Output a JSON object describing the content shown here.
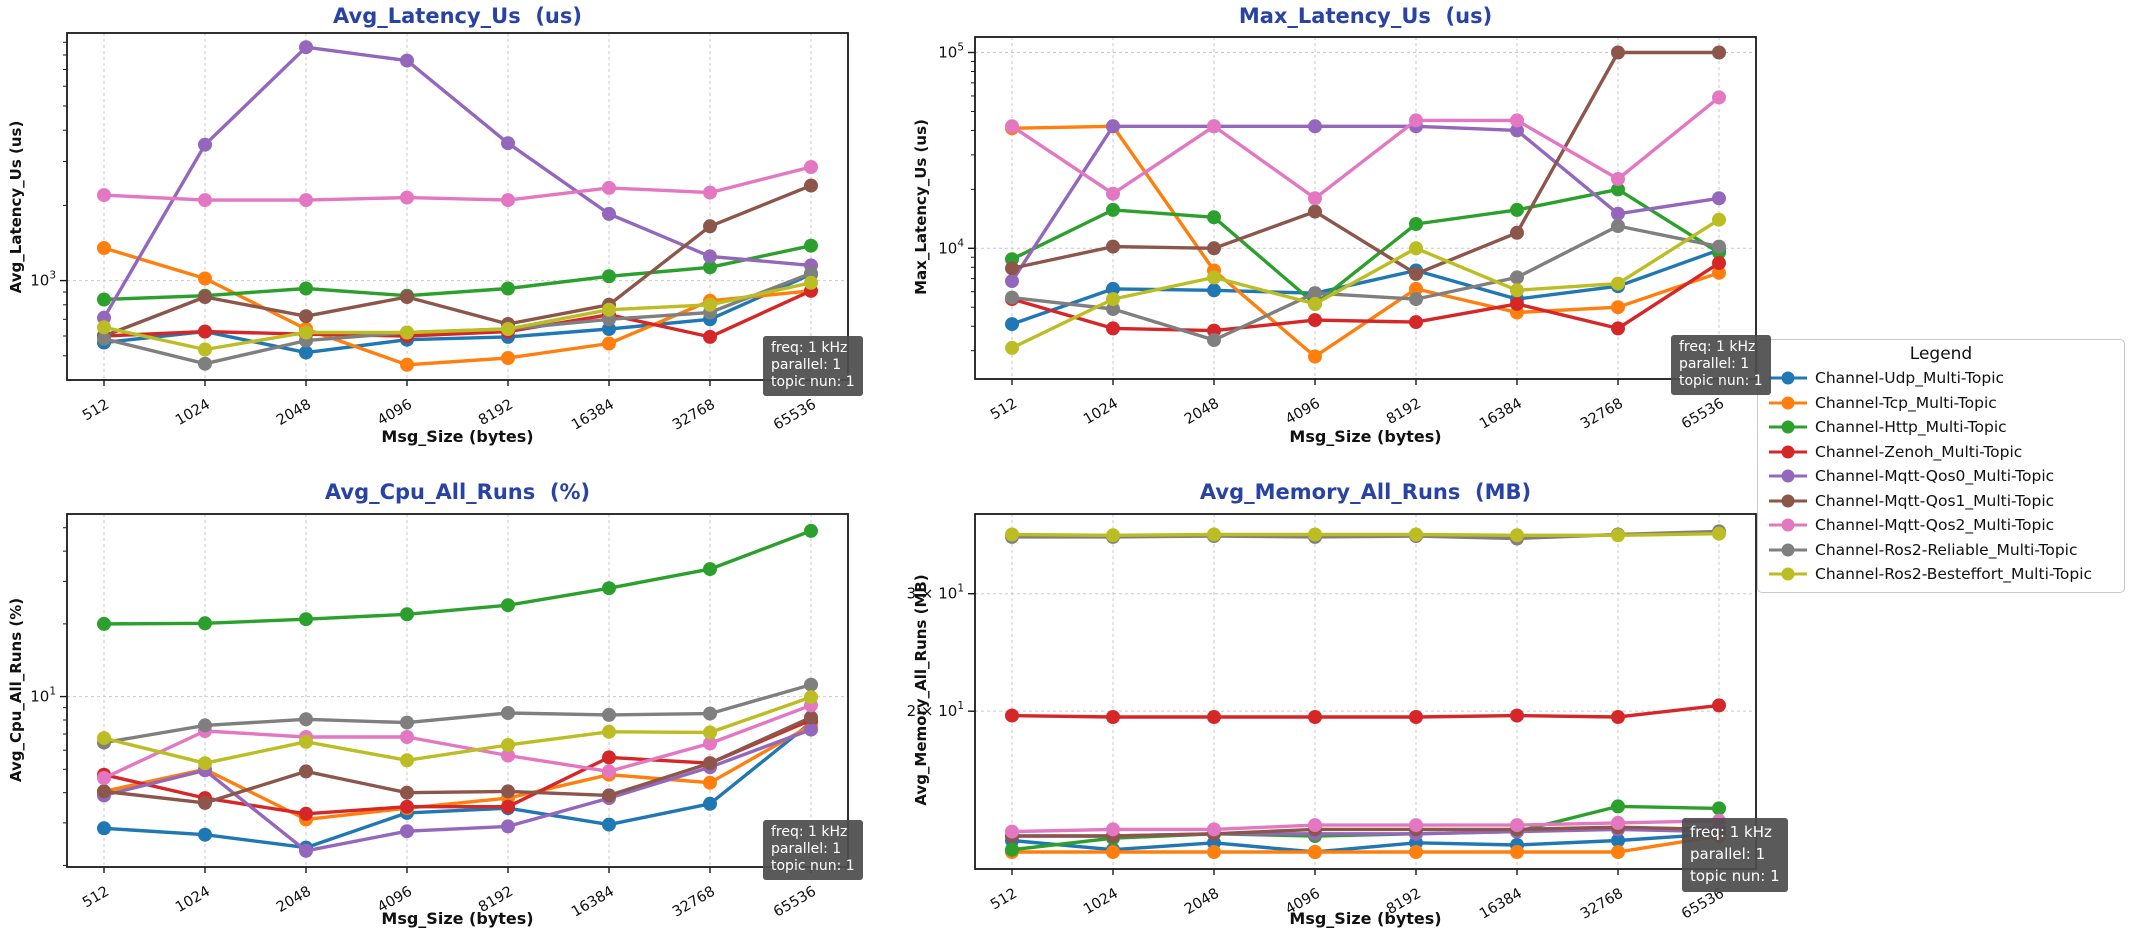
{
  "figure": {
    "background": "#ffffff",
    "title_color": "#2843a4",
    "grid_color": "#c9c9c9",
    "spine_color": "#1a1a1a",
    "annotation": {
      "lines": [
        "freq: 1 kHz",
        "parallel: 1",
        "topic nun: 1"
      ]
    },
    "legend": {
      "title": "Legend"
    }
  },
  "chart_data": [
    {
      "type": "line",
      "title": "Avg_Latency_Us  (us)",
      "ylabel": "Avg_Latency_Us (us)",
      "xlabel": "Msg_Size (bytes)",
      "xscale": "log-category",
      "yscale": "log",
      "grid": true,
      "legend_position": "right-outside",
      "x_categories": [
        "512",
        "1024",
        "2048",
        "4096",
        "8192",
        "16384",
        "32768",
        "65536"
      ],
      "ylim": [
        400,
        9800
      ],
      "yticks": [
        {
          "value": 1000,
          "label": "10^3"
        }
      ],
      "series": [
        {
          "name": "Channel-Udp_Multi-Topic",
          "color": "#1f77b4",
          "values": [
            565,
            625,
            515,
            580,
            595,
            640,
            700,
            1060
          ]
        },
        {
          "name": "Channel-Tcp_Multi-Topic",
          "color": "#ff7f0e",
          "values": [
            1350,
            1020,
            640,
            460,
            490,
            560,
            830,
            910
          ]
        },
        {
          "name": "Channel-Http_Multi-Topic",
          "color": "#2ca02c",
          "values": [
            840,
            870,
            930,
            870,
            930,
            1040,
            1130,
            1380
          ]
        },
        {
          "name": "Channel-Zenoh_Multi-Topic",
          "color": "#d62728",
          "values": [
            600,
            625,
            610,
            600,
            625,
            730,
            595,
            910
          ]
        },
        {
          "name": "Channel-Mqtt-Qos0_Multi-Topic",
          "color": "#9467bd",
          "values": [
            710,
            3500,
            8600,
            7600,
            3550,
            1850,
            1250,
            1150
          ]
        },
        {
          "name": "Channel-Mqtt-Qos1_Multi-Topic",
          "color": "#8c564b",
          "values": [
            600,
            860,
            720,
            860,
            670,
            800,
            1650,
            2400
          ]
        },
        {
          "name": "Channel-Mqtt-Qos2_Multi-Topic",
          "color": "#e377c2",
          "values": [
            2200,
            2100,
            2100,
            2150,
            2100,
            2350,
            2250,
            2850
          ]
        },
        {
          "name": "Channel-Ros2-Reliable_Multi-Topic",
          "color": "#7f7f7f",
          "values": [
            585,
            465,
            575,
            620,
            640,
            700,
            745,
            1070
          ]
        },
        {
          "name": "Channel-Ros2-Besteffort_Multi-Topic",
          "color": "#bcbd22",
          "values": [
            650,
            530,
            620,
            620,
            640,
            765,
            800,
            980
          ]
        }
      ]
    },
    {
      "type": "line",
      "title": "Max_Latency_Us  (us)",
      "ylabel": "Max_Latency_Us (us)",
      "xlabel": "Msg_Size (bytes)",
      "xscale": "log-category",
      "yscale": "log",
      "grid": true,
      "x_categories": [
        "512",
        "1024",
        "2048",
        "4096",
        "8192",
        "16384",
        "32768",
        "65536"
      ],
      "ylim": [
        2150,
        120000
      ],
      "yticks": [
        {
          "value": 10000,
          "label": "10^4"
        },
        {
          "value": 100000,
          "label": "10^5"
        }
      ],
      "series": [
        {
          "name": "Channel-Udp_Multi-Topic",
          "color": "#1f77b4",
          "values": [
            4100,
            6200,
            6100,
            5900,
            7700,
            5500,
            6400,
            9800
          ]
        },
        {
          "name": "Channel-Tcp_Multi-Topic",
          "color": "#ff7f0e",
          "values": [
            41000,
            42000,
            7700,
            2800,
            6200,
            4700,
            5000,
            7500
          ]
        },
        {
          "name": "Channel-Http_Multi-Topic",
          "color": "#2ca02c",
          "values": [
            8800,
            15700,
            14400,
            5200,
            13300,
            15700,
            20000,
            9500
          ]
        },
        {
          "name": "Channel-Zenoh_Multi-Topic",
          "color": "#d62728",
          "values": [
            5500,
            3900,
            3800,
            4300,
            4200,
            5200,
            3900,
            8400
          ]
        },
        {
          "name": "Channel-Mqtt-Qos0_Multi-Topic",
          "color": "#9467bd",
          "values": [
            6800,
            42000,
            42000,
            42000,
            42000,
            40000,
            15000,
            18000
          ]
        },
        {
          "name": "Channel-Mqtt-Qos1_Multi-Topic",
          "color": "#8c564b",
          "values": [
            7900,
            10200,
            10000,
            15400,
            7400,
            12000,
            100000,
            100000
          ]
        },
        {
          "name": "Channel-Mqtt-Qos2_Multi-Topic",
          "color": "#e377c2",
          "values": [
            42000,
            19000,
            42000,
            18000,
            45000,
            45000,
            22600,
            59000
          ]
        },
        {
          "name": "Channel-Ros2-Reliable_Multi-Topic",
          "color": "#7f7f7f",
          "values": [
            5600,
            4900,
            3400,
            5900,
            5500,
            7100,
            13000,
            10200
          ]
        },
        {
          "name": "Channel-Ros2-Besteffort_Multi-Topic",
          "color": "#bcbd22",
          "values": [
            3100,
            5500,
            7100,
            5200,
            10000,
            6100,
            6600,
            14000
          ]
        }
      ]
    },
    {
      "type": "line",
      "title": "Avg_Cpu_All_Runs  (%)",
      "ylabel": "Avg_Cpu_All_Runs (%)",
      "xlabel": "Msg_Size (bytes)",
      "xscale": "log-category",
      "yscale": "log",
      "grid": true,
      "x_categories": [
        "512",
        "1024",
        "2048",
        "4096",
        "8192",
        "16384",
        "32768",
        "65536"
      ],
      "ylim": [
        1.97,
        57
      ],
      "yticks": [
        {
          "value": 10,
          "label": "10^1"
        }
      ],
      "series": [
        {
          "name": "Channel-Udp_Multi-Topic",
          "color": "#1f77b4",
          "values": [
            2.85,
            2.68,
            2.37,
            3.3,
            3.45,
            2.95,
            3.6,
            7.8
          ]
        },
        {
          "name": "Channel-Tcp_Multi-Topic",
          "color": "#ff7f0e",
          "values": [
            4.05,
            5.0,
            3.1,
            3.45,
            3.8,
            4.75,
            4.4,
            7.6
          ]
        },
        {
          "name": "Channel-Http_Multi-Topic",
          "color": "#2ca02c",
          "values": [
            20,
            20.1,
            20.9,
            21.9,
            23.9,
            28.1,
            33.7,
            48.5
          ]
        },
        {
          "name": "Channel-Zenoh_Multi-Topic",
          "color": "#d62728",
          "values": [
            4.75,
            3.8,
            3.27,
            3.5,
            3.5,
            5.6,
            5.3,
            8.0
          ]
        },
        {
          "name": "Channel-Mqtt-Qos0_Multi-Topic",
          "color": "#9467bd",
          "values": [
            3.9,
            4.95,
            2.3,
            2.77,
            2.9,
            3.8,
            5.1,
            7.3
          ]
        },
        {
          "name": "Channel-Mqtt-Qos1_Multi-Topic",
          "color": "#8c564b",
          "values": [
            4.05,
            3.63,
            4.9,
            4.0,
            4.05,
            3.9,
            5.3,
            8.2
          ]
        },
        {
          "name": "Channel-Mqtt-Qos2_Multi-Topic",
          "color": "#e377c2",
          "values": [
            4.6,
            7.2,
            6.8,
            6.8,
            5.7,
            4.9,
            6.4,
            9.2
          ]
        },
        {
          "name": "Channel-Ros2-Reliable_Multi-Topic",
          "color": "#7f7f7f",
          "values": [
            6.45,
            7.6,
            8.05,
            7.8,
            8.55,
            8.4,
            8.5,
            11.2
          ]
        },
        {
          "name": "Channel-Ros2-Besteffort_Multi-Topic",
          "color": "#bcbd22",
          "values": [
            6.73,
            5.3,
            6.5,
            5.45,
            6.3,
            7.15,
            7.1,
            9.95
          ]
        }
      ]
    },
    {
      "type": "line",
      "title": "Avg_Memory_All_Runs  (MB)",
      "ylabel": "Avg_Memory_All_Runs (MB)",
      "xlabel": "Msg_Size (bytes)",
      "xscale": "log-category",
      "yscale": "log",
      "grid": true,
      "x_categories": [
        "512",
        "1024",
        "2048",
        "4096",
        "8192",
        "16384",
        "32768",
        "65536"
      ],
      "ylim": [
        11.6,
        39.5
      ],
      "yticks": [
        {
          "value": 20,
          "label": "2 × 10^1"
        },
        {
          "value": 30,
          "label": "3 × 10^1"
        }
      ],
      "series": [
        {
          "name": "Channel-Udp_Multi-Topic",
          "color": "#1f77b4",
          "values": [
            12.8,
            12.4,
            12.7,
            12.3,
            12.7,
            12.6,
            12.8,
            13.1
          ]
        },
        {
          "name": "Channel-Tcp_Multi-Topic",
          "color": "#ff7f0e",
          "values": [
            12.3,
            12.3,
            12.3,
            12.3,
            12.3,
            12.3,
            12.3,
            13.0
          ]
        },
        {
          "name": "Channel-Http_Multi-Topic",
          "color": "#2ca02c",
          "values": [
            12.4,
            12.9,
            13.1,
            13.0,
            13.1,
            13.2,
            14.4,
            14.3
          ]
        },
        {
          "name": "Channel-Zenoh_Multi-Topic",
          "color": "#d62728",
          "values": [
            19.7,
            19.6,
            19.6,
            19.6,
            19.6,
            19.7,
            19.6,
            20.4
          ]
        },
        {
          "name": "Channel-Mqtt-Qos0_Multi-Topic",
          "color": "#9467bd",
          "values": [
            13.0,
            13.0,
            13.1,
            13.1,
            13.1,
            13.2,
            13.3,
            13.2
          ]
        },
        {
          "name": "Channel-Mqtt-Qos1_Multi-Topic",
          "color": "#8c564b",
          "values": [
            13.0,
            13.0,
            13.1,
            13.3,
            13.3,
            13.3,
            13.4,
            13.3
          ]
        },
        {
          "name": "Channel-Mqtt-Qos2_Multi-Topic",
          "color": "#e377c2",
          "values": [
            13.2,
            13.3,
            13.3,
            13.5,
            13.5,
            13.5,
            13.6,
            13.7
          ]
        },
        {
          "name": "Channel-Ros2-Reliable_Multi-Topic",
          "color": "#7f7f7f",
          "values": [
            36.5,
            36.5,
            36.6,
            36.5,
            36.6,
            36.3,
            36.8,
            37.2
          ]
        },
        {
          "name": "Channel-Ros2-Besteffort_Multi-Topic",
          "color": "#bcbd22",
          "values": [
            36.8,
            36.7,
            36.8,
            36.8,
            36.8,
            36.7,
            36.7,
            36.9
          ]
        }
      ]
    }
  ]
}
